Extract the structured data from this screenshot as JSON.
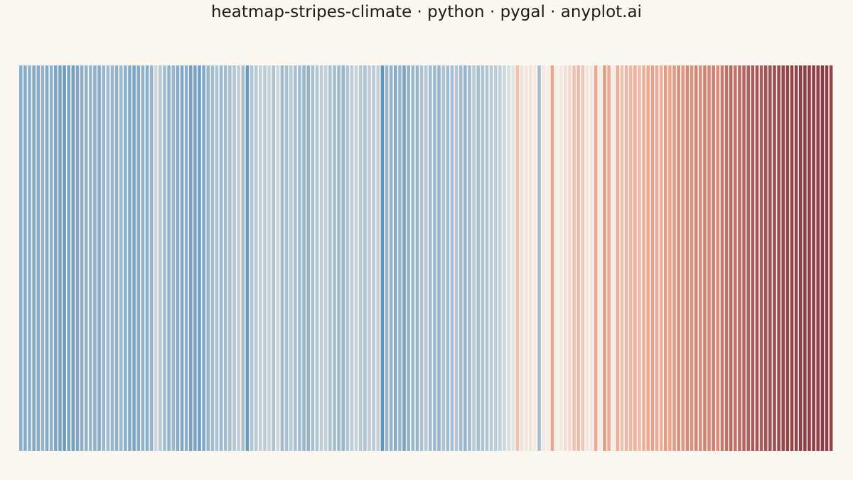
{
  "title": "heatmap-stripes-climate · python · pygal · anyplot.ai",
  "colors": {
    "background": "#FAF6F0",
    "cold": "#5B93BC",
    "neutral": "#F3EEE8",
    "warm": "#EBA28B",
    "hot": "#8B3C44"
  },
  "chart_data": {
    "type": "heatmap",
    "title": "heatmap-stripes-climate · python · pygal · anyplot.ai",
    "xlabel": "",
    "ylabel": "",
    "grid": false,
    "legend": "none",
    "value_range": [
      -0.55,
      1.2
    ],
    "values": [
      -0.38,
      -0.4,
      -0.36,
      -0.42,
      -0.39,
      -0.35,
      -0.41,
      -0.37,
      -0.43,
      -0.45,
      -0.5,
      -0.44,
      -0.47,
      -0.42,
      -0.38,
      -0.36,
      -0.33,
      -0.37,
      -0.4,
      -0.35,
      -0.3,
      -0.34,
      -0.36,
      -0.32,
      -0.38,
      -0.4,
      -0.44,
      -0.4,
      -0.36,
      -0.38,
      -0.34,
      -0.14,
      -0.22,
      -0.3,
      -0.36,
      -0.32,
      -0.4,
      -0.42,
      -0.38,
      -0.46,
      -0.44,
      -0.48,
      -0.42,
      -0.34,
      -0.3,
      -0.26,
      -0.32,
      -0.3,
      -0.27,
      -0.24,
      -0.2,
      -0.28,
      -0.5,
      -0.25,
      -0.22,
      -0.18,
      -0.2,
      -0.16,
      -0.26,
      -0.14,
      -0.3,
      -0.27,
      -0.22,
      -0.28,
      -0.3,
      -0.34,
      -0.36,
      -0.28,
      -0.24,
      -0.2,
      -0.18,
      -0.26,
      -0.3,
      -0.32,
      -0.34,
      -0.24,
      -0.2,
      -0.16,
      -0.22,
      -0.26,
      -0.2,
      -0.22,
      -0.18,
      -0.53,
      -0.34,
      -0.36,
      -0.4,
      -0.33,
      -0.44,
      -0.36,
      -0.32,
      -0.34,
      -0.26,
      -0.22,
      -0.3,
      -0.32,
      -0.34,
      -0.26,
      -0.3,
      -0.28,
      -0.24,
      -0.3,
      -0.34,
      -0.3,
      -0.22,
      -0.28,
      -0.26,
      -0.24,
      -0.22,
      -0.2,
      -0.18,
      -0.14,
      -0.1,
      -0.06,
      0.32,
      0.08,
      0.04,
      0.08,
      0.02,
      -0.28,
      0.06,
      0.0,
      0.52,
      0.0,
      0.04,
      0.12,
      0.14,
      0.32,
      0.36,
      0.28,
      0.06,
      0.04,
      0.5,
      0.0,
      0.6,
      0.5,
      0.0,
      0.46,
      0.32,
      0.4,
      0.38,
      0.44,
      0.36,
      0.46,
      0.5,
      0.55,
      0.48,
      0.44,
      0.58,
      0.52,
      0.6,
      0.66,
      0.62,
      0.7,
      0.65,
      0.72,
      0.66,
      0.74,
      0.7,
      0.76,
      0.68,
      0.8,
      0.86,
      0.9,
      0.84,
      0.88,
      0.92,
      0.96,
      1.0,
      1.02,
      0.98,
      1.04,
      1.06,
      1.08,
      1.1,
      1.12,
      1.14,
      1.16,
      1.14,
      1.17,
      1.18,
      1.19,
      1.2,
      1.16,
      1.2,
      1.18,
      1.15
    ]
  }
}
